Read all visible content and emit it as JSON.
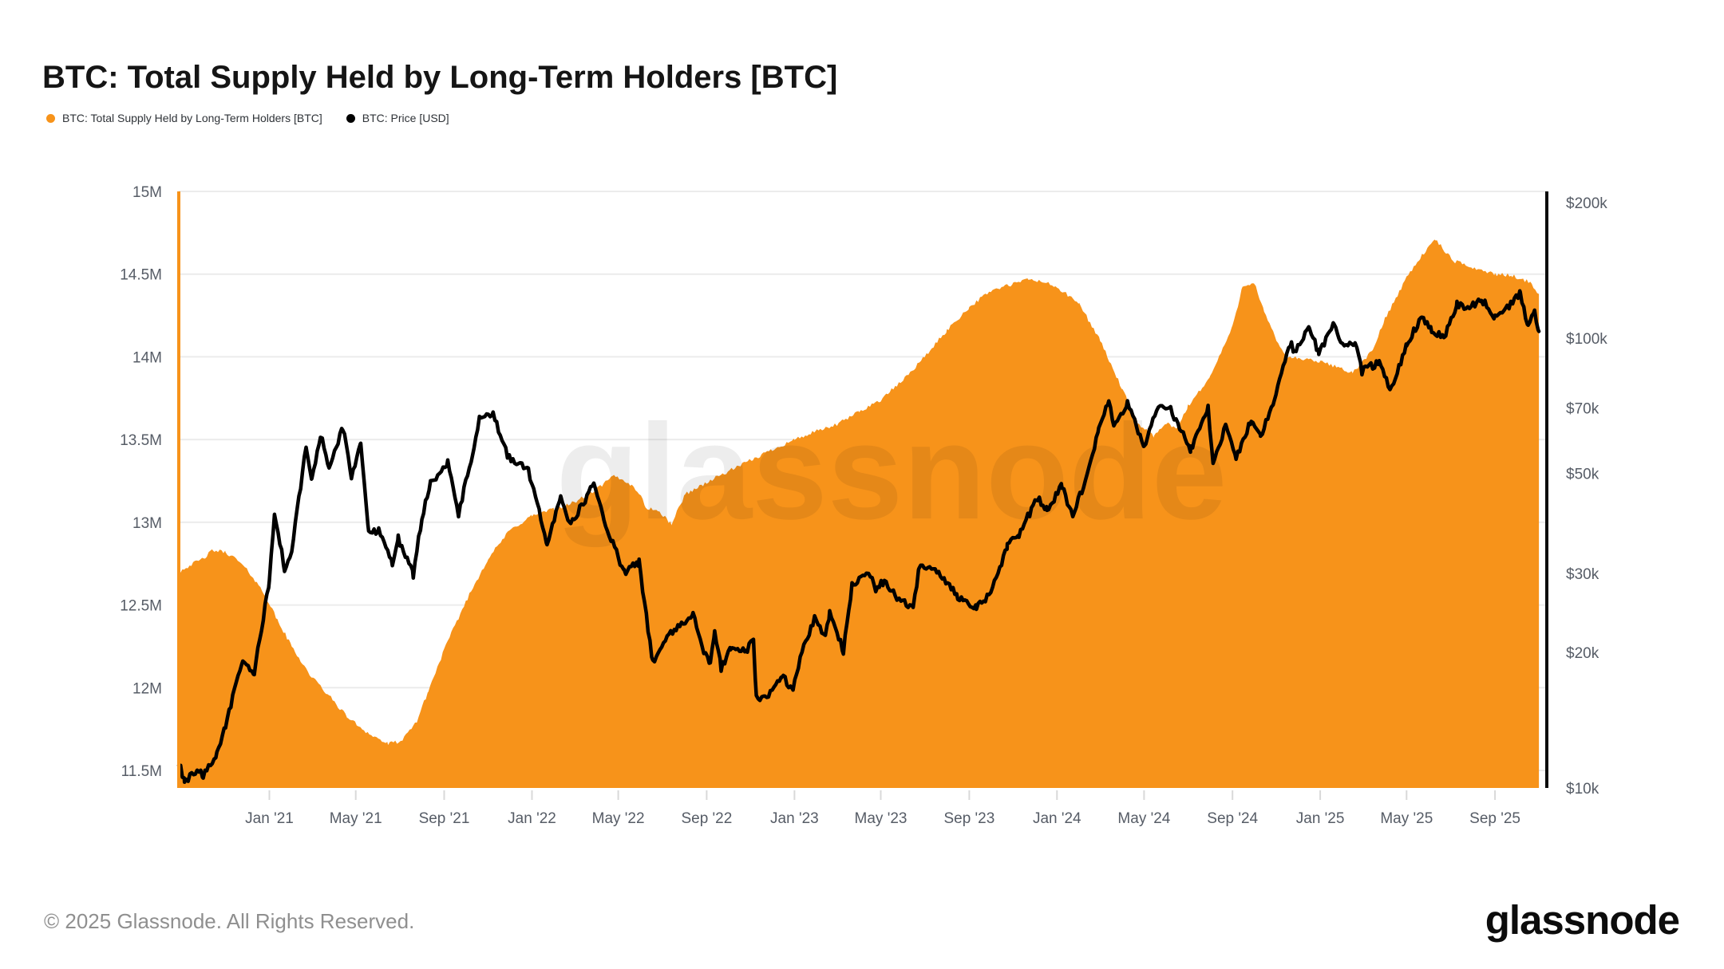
{
  "title": "BTC: Total Supply Held by Long-Term Holders [BTC]",
  "legend": [
    {
      "label": "BTC: Total Supply Held by Long-Term Holders [BTC]",
      "color": "#f7931a"
    },
    {
      "label": "BTC: Price [USD]",
      "color": "#000000"
    }
  ],
  "watermark": "glassnode",
  "footer": {
    "copyright": "© 2025 Glassnode. All Rights Reserved.",
    "logo": "glassnode"
  },
  "colors": {
    "supply_area": "#f7931a",
    "price_line": "#000000",
    "grid": "#ececec",
    "axis_text": "#565c66",
    "left_axis_line": "#f7931a",
    "right_axis_line": "#0b0b0b"
  },
  "chart_data": {
    "type": "area",
    "subtype": "dual-axis time series: orange area (left linear axis, M BTC) + black line (right log axis, USD)",
    "x_domain": [
      "2020-08-28",
      "2025-11-12"
    ],
    "x_ticks": [
      {
        "date": "2021-01-01",
        "label": "Jan '21"
      },
      {
        "date": "2021-05-01",
        "label": "May '21"
      },
      {
        "date": "2021-09-01",
        "label": "Sep '21"
      },
      {
        "date": "2022-01-01",
        "label": "Jan '22"
      },
      {
        "date": "2022-05-01",
        "label": "May '22"
      },
      {
        "date": "2022-09-01",
        "label": "Sep '22"
      },
      {
        "date": "2023-01-01",
        "label": "Jan '23"
      },
      {
        "date": "2023-05-01",
        "label": "May '23"
      },
      {
        "date": "2023-09-01",
        "label": "Sep '23"
      },
      {
        "date": "2024-01-01",
        "label": "Jan '24"
      },
      {
        "date": "2024-05-01",
        "label": "May '24"
      },
      {
        "date": "2024-09-01",
        "label": "Sep '24"
      },
      {
        "date": "2025-01-01",
        "label": "Jan '25"
      },
      {
        "date": "2025-05-01",
        "label": "May '25"
      },
      {
        "date": "2025-09-01",
        "label": "Sep '25"
      }
    ],
    "left_axis": {
      "scale": "linear",
      "unit": "M BTC",
      "top_value": 15,
      "bottom_value": 11.394,
      "ticks": [
        {
          "value": 15,
          "label": "15M"
        },
        {
          "value": 14.5,
          "label": "14.5M"
        },
        {
          "value": 14,
          "label": "14M"
        },
        {
          "value": 13.5,
          "label": "13.5M"
        },
        {
          "value": 13,
          "label": "13M"
        },
        {
          "value": 12.5,
          "label": "12.5M"
        },
        {
          "value": 12,
          "label": "12M"
        },
        {
          "value": 11.5,
          "label": "11.5M"
        }
      ]
    },
    "right_axis": {
      "scale": "log",
      "unit": "USD",
      "bottom_value": 10000,
      "top_value": 211900,
      "ticks": [
        {
          "value": 200000,
          "label": "$200k"
        },
        {
          "value": 100000,
          "label": "$100k"
        },
        {
          "value": 70000,
          "label": "$70k"
        },
        {
          "value": 50000,
          "label": "$50k"
        },
        {
          "value": 30000,
          "label": "$30k"
        },
        {
          "value": 20000,
          "label": "$20k"
        },
        {
          "value": 10000,
          "label": "$10k"
        }
      ]
    },
    "noise": {
      "seed": 42,
      "step_days": 2.5,
      "supply": 0.012,
      "price_log": 0.008
    },
    "series": [
      {
        "name": "BTC: Total Supply Held by Long-Term Holders [BTC]",
        "type": "area",
        "axis": "left",
        "color": "#f7931a",
        "unit": "million BTC",
        "points": [
          [
            "2020-08-28",
            12.7
          ],
          [
            "2020-09-12",
            12.74
          ],
          [
            "2020-10-01",
            12.78
          ],
          [
            "2020-10-14",
            12.83
          ],
          [
            "2020-11-01",
            12.82
          ],
          [
            "2020-11-18",
            12.77
          ],
          [
            "2020-12-07",
            12.68
          ],
          [
            "2020-12-26",
            12.56
          ],
          [
            "2021-01-13",
            12.4
          ],
          [
            "2021-02-01",
            12.25
          ],
          [
            "2021-02-26",
            12.08
          ],
          [
            "2021-03-25",
            11.95
          ],
          [
            "2021-04-20",
            11.82
          ],
          [
            "2021-05-20",
            11.72
          ],
          [
            "2021-06-15",
            11.66
          ],
          [
            "2021-07-05",
            11.68
          ],
          [
            "2021-07-25",
            11.8
          ],
          [
            "2021-08-10",
            11.98
          ],
          [
            "2021-09-01",
            12.23
          ],
          [
            "2021-10-01",
            12.52
          ],
          [
            "2021-11-01",
            12.78
          ],
          [
            "2021-12-01",
            12.95
          ],
          [
            "2022-01-01",
            13.04
          ],
          [
            "2022-02-01",
            13.08
          ],
          [
            "2022-03-01",
            13.12
          ],
          [
            "2022-04-01",
            13.2
          ],
          [
            "2022-04-25",
            13.28
          ],
          [
            "2022-05-15",
            13.24
          ],
          [
            "2022-05-30",
            13.18
          ],
          [
            "2022-06-08",
            13.09
          ],
          [
            "2022-06-25",
            13.07
          ],
          [
            "2022-07-14",
            12.99
          ],
          [
            "2022-08-02",
            13.17
          ],
          [
            "2022-09-18",
            13.28
          ],
          [
            "2022-11-04",
            13.38
          ],
          [
            "2022-12-01",
            13.44
          ],
          [
            "2023-01-01",
            13.5
          ],
          [
            "2023-02-01",
            13.55
          ],
          [
            "2023-03-01",
            13.59
          ],
          [
            "2023-04-01",
            13.67
          ],
          [
            "2023-05-01",
            13.74
          ],
          [
            "2023-06-01",
            13.86
          ],
          [
            "2023-07-01",
            14.0
          ],
          [
            "2023-08-01",
            14.16
          ],
          [
            "2023-09-01",
            14.3
          ],
          [
            "2023-10-01",
            14.4
          ],
          [
            "2023-11-01",
            14.44
          ],
          [
            "2023-11-22",
            14.47
          ],
          [
            "2023-12-15",
            14.45
          ],
          [
            "2024-01-01",
            14.42
          ],
          [
            "2024-02-01",
            14.32
          ],
          [
            "2024-03-01",
            14.1
          ],
          [
            "2024-04-01",
            13.8
          ],
          [
            "2024-04-22",
            13.6
          ],
          [
            "2024-05-15",
            13.52
          ],
          [
            "2024-06-01",
            13.6
          ],
          [
            "2024-06-15",
            13.56
          ],
          [
            "2024-07-01",
            13.7
          ],
          [
            "2024-08-01",
            13.88
          ],
          [
            "2024-09-01",
            14.18
          ],
          [
            "2024-09-15",
            14.43
          ],
          [
            "2024-10-01",
            14.45
          ],
          [
            "2024-10-15",
            14.27
          ],
          [
            "2024-11-01",
            14.1
          ],
          [
            "2024-11-15",
            14.0
          ],
          [
            "2024-12-01",
            13.99
          ],
          [
            "2025-01-01",
            13.97
          ],
          [
            "2025-02-01",
            13.93
          ],
          [
            "2025-02-15",
            13.9
          ],
          [
            "2025-03-01",
            13.97
          ],
          [
            "2025-03-15",
            14.04
          ],
          [
            "2025-04-01",
            14.23
          ],
          [
            "2025-05-01",
            14.48
          ],
          [
            "2025-05-20",
            14.6
          ],
          [
            "2025-06-10",
            14.71
          ],
          [
            "2025-06-25",
            14.63
          ],
          [
            "2025-07-05",
            14.58
          ],
          [
            "2025-08-01",
            14.54
          ],
          [
            "2025-09-01",
            14.5
          ],
          [
            "2025-09-25",
            14.49
          ],
          [
            "2025-10-10",
            14.47
          ],
          [
            "2025-10-22",
            14.44
          ],
          [
            "2025-11-01",
            14.38
          ]
        ]
      },
      {
        "name": "BTC: Price [USD]",
        "type": "line",
        "axis": "right",
        "color": "#000000",
        "unit": "USD",
        "points": [
          [
            "2020-08-28",
            11400
          ],
          [
            "2020-09-05",
            10300
          ],
          [
            "2020-09-20",
            10900
          ],
          [
            "2020-10-01",
            10700
          ],
          [
            "2020-10-20",
            11900
          ],
          [
            "2020-11-01",
            13800
          ],
          [
            "2020-11-25",
            19200
          ],
          [
            "2020-12-11",
            18000
          ],
          [
            "2021-01-01",
            29000
          ],
          [
            "2021-01-08",
            40600
          ],
          [
            "2021-01-22",
            30800
          ],
          [
            "2021-02-01",
            33500
          ],
          [
            "2021-02-21",
            57500
          ],
          [
            "2021-03-01",
            48000
          ],
          [
            "2021-03-13",
            61200
          ],
          [
            "2021-03-25",
            51300
          ],
          [
            "2021-04-13",
            63500
          ],
          [
            "2021-04-25",
            49100
          ],
          [
            "2021-05-08",
            58800
          ],
          [
            "2021-05-19",
            36700
          ],
          [
            "2021-06-02",
            37600
          ],
          [
            "2021-06-21",
            31700
          ],
          [
            "2021-06-29",
            35900
          ],
          [
            "2021-07-20",
            29800
          ],
          [
            "2021-08-01",
            39900
          ],
          [
            "2021-08-13",
            47800
          ],
          [
            "2021-09-06",
            52700
          ],
          [
            "2021-09-21",
            40700
          ],
          [
            "2021-10-10",
            54900
          ],
          [
            "2021-10-20",
            66000
          ],
          [
            "2021-11-08",
            67500
          ],
          [
            "2021-11-28",
            54700
          ],
          [
            "2021-12-27",
            50800
          ],
          [
            "2022-01-22",
            35000
          ],
          [
            "2022-02-10",
            44600
          ],
          [
            "2022-02-24",
            38300
          ],
          [
            "2022-03-28",
            47500
          ],
          [
            "2022-04-11",
            39500
          ],
          [
            "2022-05-09",
            30100
          ],
          [
            "2022-05-30",
            31700
          ],
          [
            "2022-06-18",
            19000
          ],
          [
            "2022-07-08",
            21600
          ],
          [
            "2022-08-13",
            24400
          ],
          [
            "2022-08-28",
            20000
          ],
          [
            "2022-09-06",
            18800
          ],
          [
            "2022-09-12",
            22400
          ],
          [
            "2022-09-21",
            18500
          ],
          [
            "2022-10-04",
            20300
          ],
          [
            "2022-10-25",
            20100
          ],
          [
            "2022-11-05",
            21300
          ],
          [
            "2022-11-09",
            15900
          ],
          [
            "2022-11-21",
            15800
          ],
          [
            "2022-12-14",
            17800
          ],
          [
            "2022-12-30",
            16500
          ],
          [
            "2023-01-14",
            20900
          ],
          [
            "2023-01-29",
            23700
          ],
          [
            "2023-02-13",
            21800
          ],
          [
            "2023-02-19",
            24600
          ],
          [
            "2023-03-10",
            20200
          ],
          [
            "2023-03-22",
            28100
          ],
          [
            "2023-04-14",
            30400
          ],
          [
            "2023-04-24",
            27600
          ],
          [
            "2023-05-06",
            28900
          ],
          [
            "2023-05-24",
            26300
          ],
          [
            "2023-06-15",
            25100
          ],
          [
            "2023-06-23",
            30700
          ],
          [
            "2023-07-13",
            31200
          ],
          [
            "2023-08-16",
            26600
          ],
          [
            "2023-09-11",
            25200
          ],
          [
            "2023-10-01",
            27000
          ],
          [
            "2023-10-24",
            34500
          ],
          [
            "2023-11-09",
            36700
          ],
          [
            "2023-12-05",
            44100
          ],
          [
            "2023-12-18",
            41400
          ],
          [
            "2024-01-08",
            46900
          ],
          [
            "2024-01-23",
            39900
          ],
          [
            "2024-02-12",
            49900
          ],
          [
            "2024-02-28",
            62500
          ],
          [
            "2024-03-13",
            73100
          ],
          [
            "2024-03-20",
            62800
          ],
          [
            "2024-04-08",
            71600
          ],
          [
            "2024-05-01",
            57500
          ],
          [
            "2024-05-21",
            71400
          ],
          [
            "2024-06-07",
            69300
          ],
          [
            "2024-07-05",
            56600
          ],
          [
            "2024-07-29",
            69900
          ],
          [
            "2024-08-05",
            53000
          ],
          [
            "2024-08-23",
            64100
          ],
          [
            "2024-09-06",
            53900
          ],
          [
            "2024-09-27",
            65800
          ],
          [
            "2024-10-10",
            60300
          ],
          [
            "2024-10-29",
            72700
          ],
          [
            "2024-11-22",
            99000
          ],
          [
            "2024-11-26",
            91900
          ],
          [
            "2024-12-17",
            106300
          ],
          [
            "2024-12-30",
            92600
          ],
          [
            "2025-01-20",
            108000
          ],
          [
            "2025-01-27",
            98600
          ],
          [
            "2025-02-21",
            96100
          ],
          [
            "2025-02-28",
            84400
          ],
          [
            "2025-03-24",
            88500
          ],
          [
            "2025-04-08",
            76300
          ],
          [
            "2025-05-01",
            96500
          ],
          [
            "2025-05-22",
            111700
          ],
          [
            "2025-06-05",
            104500
          ],
          [
            "2025-06-22",
            100500
          ],
          [
            "2025-07-10",
            119500
          ],
          [
            "2025-07-25",
            116000
          ],
          [
            "2025-08-13",
            122500
          ],
          [
            "2025-09-01",
            110500
          ],
          [
            "2025-09-18",
            117000
          ],
          [
            "2025-10-06",
            126000
          ],
          [
            "2025-10-17",
            106500
          ],
          [
            "2025-10-26",
            114000
          ],
          [
            "2025-11-01",
            103500
          ]
        ]
      }
    ]
  }
}
